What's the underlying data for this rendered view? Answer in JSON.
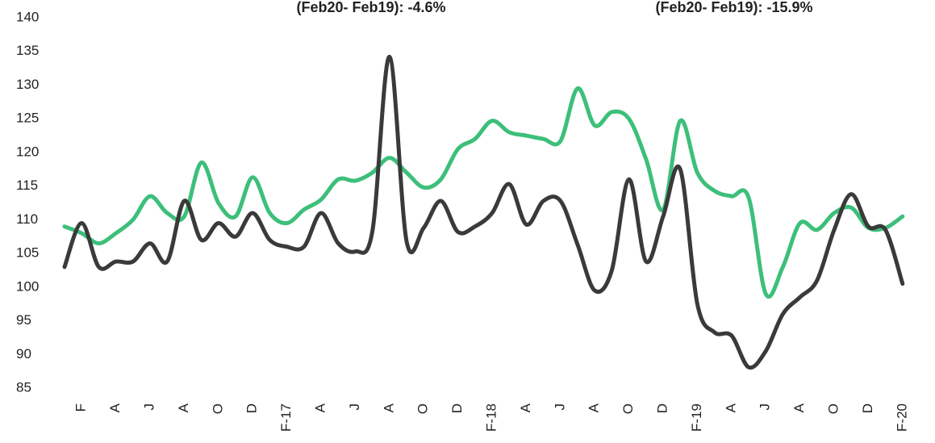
{
  "chart_data": {
    "type": "line",
    "annotations": [
      "(Feb20- Feb19): -4.6%",
      "(Feb20- Feb19): -15.9%"
    ],
    "categories": [
      null,
      "F",
      null,
      "A",
      null,
      "J",
      null,
      "A",
      null,
      "O",
      null,
      "D",
      null,
      "F-17",
      null,
      "A",
      null,
      "J",
      null,
      "A",
      null,
      "O",
      null,
      "D",
      null,
      "F-18",
      null,
      "A",
      null,
      "J",
      null,
      "A",
      null,
      "O",
      null,
      "D",
      null,
      "F-19",
      null,
      "A",
      null,
      "J",
      null,
      "A",
      null,
      "O",
      null,
      "D",
      null,
      "F-20"
    ],
    "series": [
      {
        "color": "#3dbf7a",
        "values": [
          109,
          108,
          106.5,
          108,
          110,
          113.5,
          111,
          110.5,
          118.5,
          112.5,
          110.5,
          116.3,
          111,
          109.5,
          111.5,
          113,
          116,
          115.8,
          117,
          119.2,
          117,
          114.8,
          116,
          120.5,
          122,
          124.7,
          123,
          122.5,
          122,
          121.7,
          129.5,
          124,
          126,
          125,
          119,
          111.5,
          124.7,
          117,
          114.3,
          113.5,
          113.3,
          99,
          103,
          109.5,
          108.5,
          111,
          111.8,
          108.8,
          108.8,
          110.5
        ]
      },
      {
        "color": "#3a3a3a",
        "values": [
          103,
          109.5,
          103,
          103.8,
          103.8,
          106.5,
          103.8,
          112.8,
          107,
          109.5,
          107.5,
          111,
          107,
          106,
          106,
          111,
          106.5,
          105.3,
          108.3,
          134.2,
          106.8,
          108.8,
          112.8,
          108.2,
          109,
          111,
          115.3,
          109.3,
          112.8,
          112.8,
          106.3,
          99.5,
          102.5,
          116,
          103.8,
          110.5,
          117.5,
          97.5,
          93.3,
          92.8,
          88.1,
          90.5,
          96,
          98.5,
          101,
          108.5,
          113.8,
          109,
          108.5,
          100.5
        ]
      }
    ],
    "ylim": [
      85,
      140
    ],
    "yticks": [
      85,
      90,
      95,
      100,
      105,
      110,
      115,
      120,
      125,
      130,
      135,
      140
    ],
    "grid": false
  }
}
